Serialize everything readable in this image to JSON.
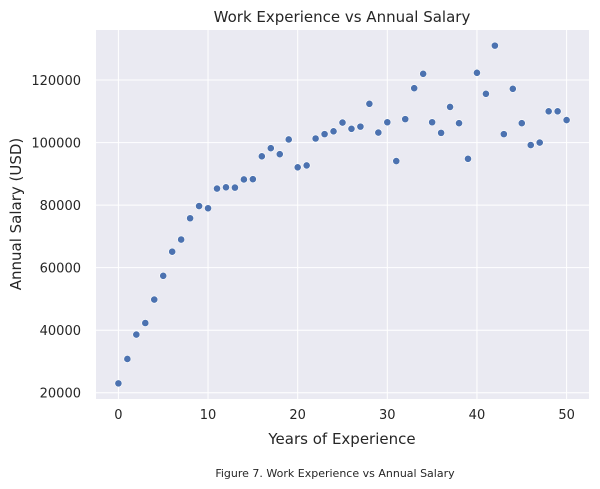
{
  "chart_data": {
    "type": "scatter",
    "title": "Work Experience vs Annual Salary",
    "xlabel": "Years of Experience",
    "ylabel": "Annual Salary (USD)",
    "xlim": [
      -2.5,
      52.5
    ],
    "ylim": [
      18000,
      136000
    ],
    "xticks": [
      0,
      10,
      20,
      30,
      40,
      50
    ],
    "yticks": [
      20000,
      40000,
      60000,
      80000,
      100000,
      120000
    ],
    "xtick_labels": [
      "0",
      "10",
      "20",
      "30",
      "40",
      "50"
    ],
    "ytick_labels": [
      "20000",
      "40000",
      "60000",
      "80000",
      "100000",
      "120000"
    ],
    "grid": true,
    "legend": "none",
    "colors": {
      "background": "#EAEAF2",
      "grid": "#FFFFFF",
      "marker": "#4C72B0",
      "marker_edge": "#FFFFFF",
      "text": "#262626"
    },
    "series": [
      {
        "x": [
          0,
          1,
          2,
          3,
          4,
          5,
          6,
          7,
          8,
          9,
          10,
          11,
          12,
          13,
          14,
          15,
          16,
          17,
          18,
          19,
          20,
          21,
          22,
          23,
          24,
          25,
          26,
          27,
          28,
          29,
          30,
          31,
          32,
          33,
          34,
          35,
          36,
          37,
          38,
          39,
          40,
          41,
          42,
          43,
          44,
          45,
          46,
          47,
          48,
          49,
          50
        ],
        "y": [
          23000,
          30800,
          38600,
          42300,
          49800,
          57400,
          65100,
          69000,
          75800,
          79700,
          79000,
          85300,
          85700,
          85600,
          88200,
          88300,
          95600,
          98200,
          96300,
          101000,
          92100,
          92700,
          101300,
          102700,
          103600,
          106400,
          104400,
          105100,
          112400,
          103200,
          106500,
          94100,
          107500,
          117400,
          122000,
          106500,
          103100,
          111400,
          106200,
          94800,
          122300,
          115600,
          131000,
          102700,
          117200,
          106200,
          99200,
          100000,
          110000,
          110000,
          107200
        ]
      }
    ]
  },
  "caption": "Figure 7. Work Experience vs Annual Salary"
}
